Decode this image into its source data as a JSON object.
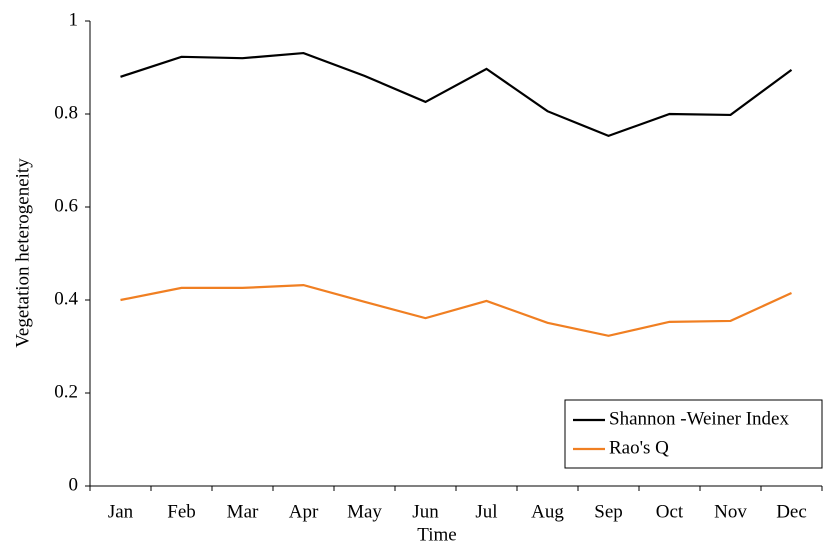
{
  "chart_data": {
    "type": "line",
    "x_label": "Time",
    "y_label": "Vegetation heterogeneity",
    "categories": [
      "Jan",
      "Feb",
      "Mar",
      "Apr",
      "May",
      "Jun",
      "Jul",
      "Aug",
      "Sep",
      "Oct",
      "Nov",
      "Dec"
    ],
    "series": [
      {
        "name": "Shannon -Weiner Index",
        "color": "#000000",
        "values": [
          0.88,
          0.923,
          0.92,
          0.931,
          0.882,
          0.826,
          0.897,
          0.806,
          0.753,
          0.8,
          0.798,
          0.895
        ]
      },
      {
        "name": "Rao's Q",
        "color": "#f07f22",
        "values": [
          0.4,
          0.426,
          0.426,
          0.432,
          0.396,
          0.361,
          0.398,
          0.351,
          0.323,
          0.353,
          0.355,
          0.415
        ]
      }
    ],
    "ylim": [
      0,
      1
    ],
    "yticks": [
      0,
      0.2,
      0.4,
      0.6,
      0.8,
      1
    ],
    "legend": "lower right"
  }
}
